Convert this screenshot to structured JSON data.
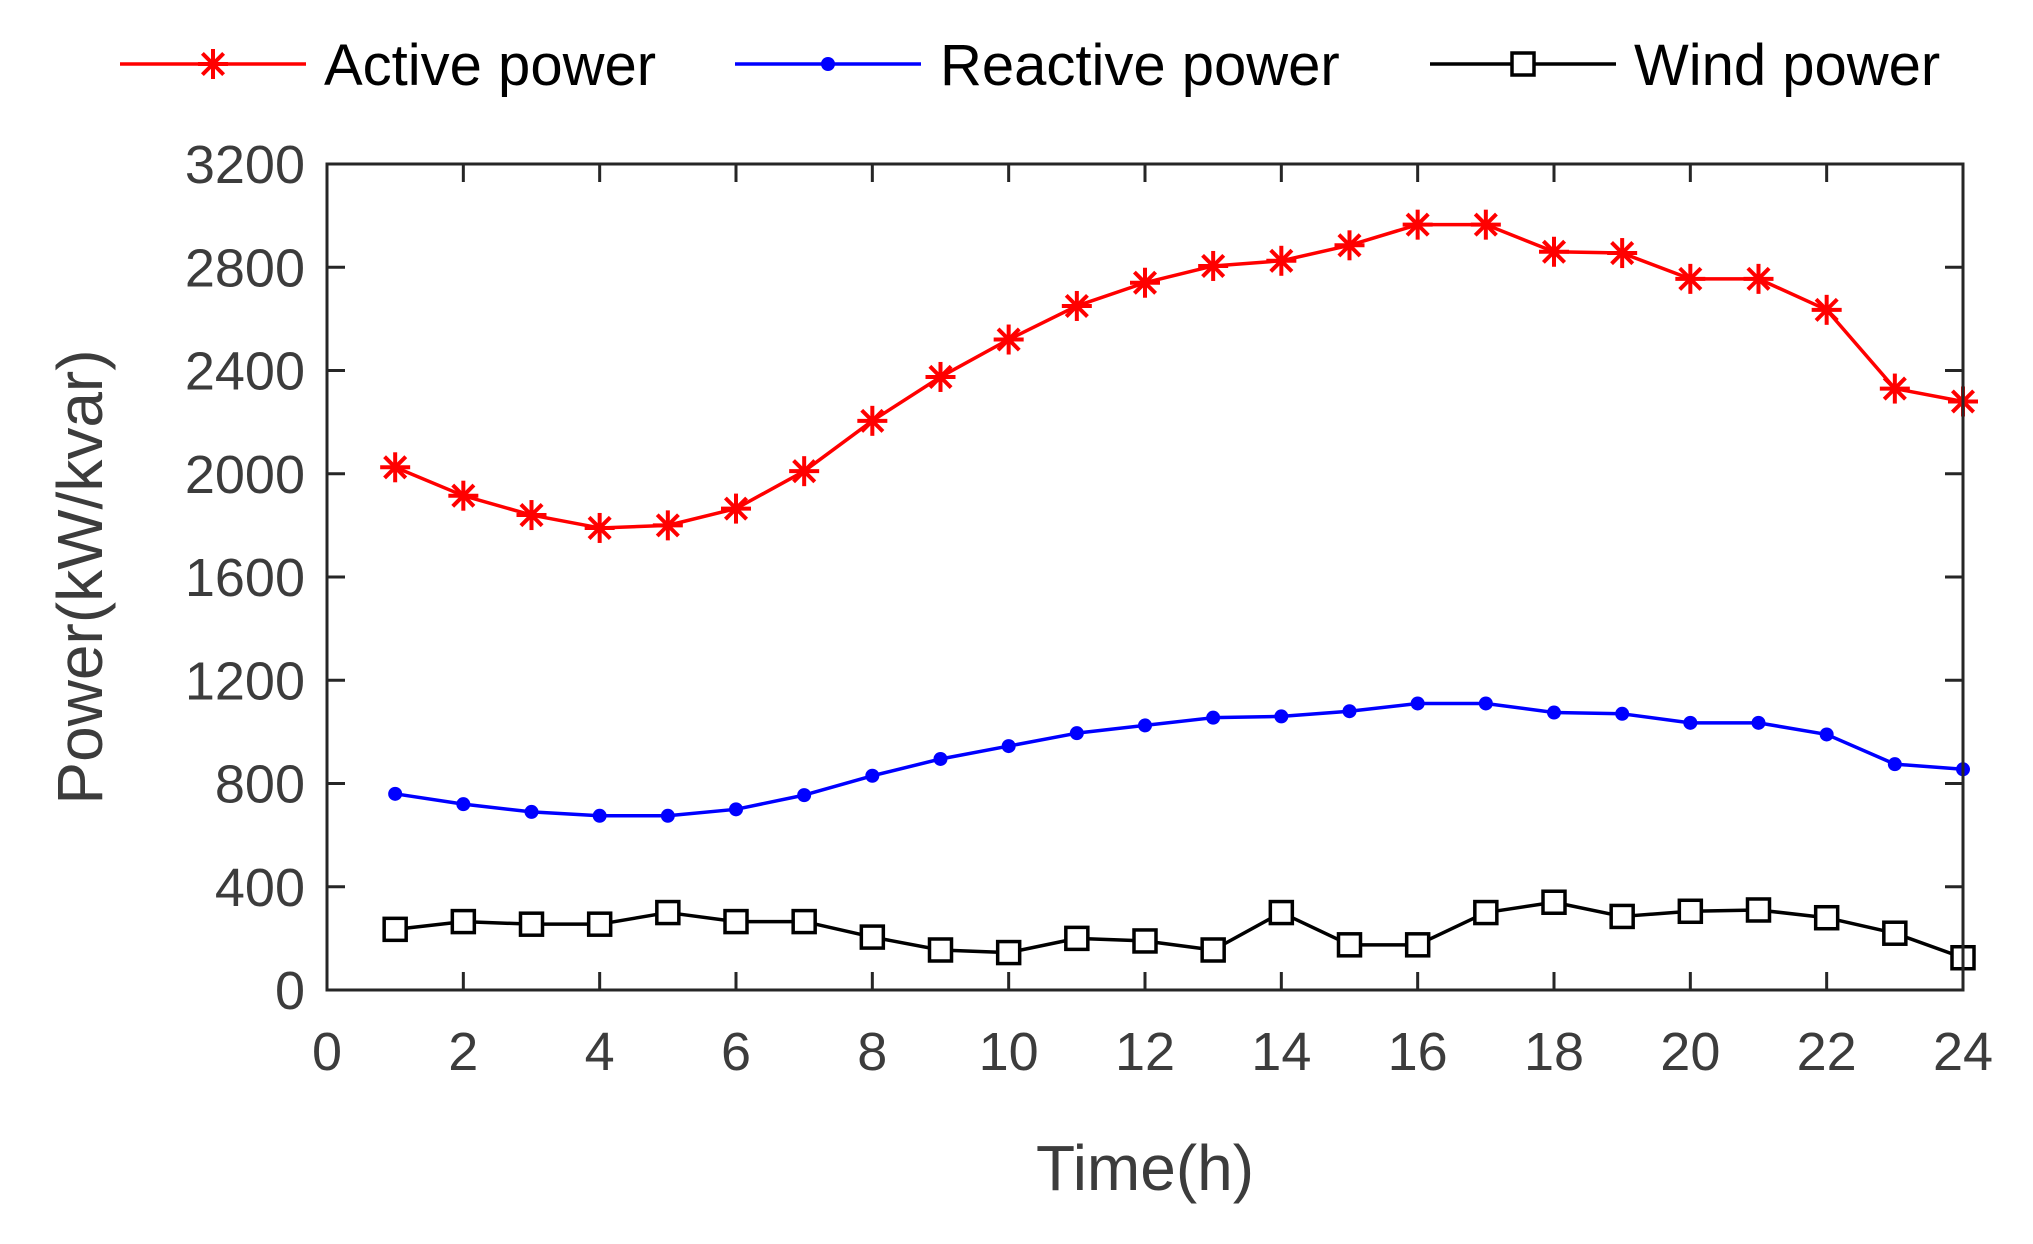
{
  "chart_data": {
    "type": "line",
    "title": "",
    "xlabel": "Time(h)",
    "ylabel": "Power(kW/kvar)",
    "xlim": [
      0,
      24
    ],
    "ylim": [
      0,
      3200
    ],
    "xticks": [
      0,
      2,
      4,
      6,
      8,
      10,
      12,
      14,
      16,
      18,
      20,
      22,
      24
    ],
    "yticks": [
      0,
      400,
      800,
      1200,
      1600,
      2000,
      2400,
      2800,
      3200
    ],
    "grid": false,
    "legend_position": "top",
    "x": [
      1,
      2,
      3,
      4,
      5,
      6,
      7,
      8,
      9,
      10,
      11,
      12,
      13,
      14,
      15,
      16,
      17,
      18,
      19,
      20,
      21,
      22,
      23,
      24
    ],
    "series": [
      {
        "name": "Active power",
        "color": "#ff0000",
        "marker": "asterisk",
        "values": [
          2025,
          1915,
          1840,
          1790,
          1800,
          1865,
          2010,
          2205,
          2375,
          2520,
          2650,
          2740,
          2805,
          2825,
          2885,
          2965,
          2965,
          2860,
          2855,
          2755,
          2755,
          2635,
          2330,
          2280
        ]
      },
      {
        "name": "Reactive power",
        "color": "#0000ff",
        "marker": "dot",
        "values": [
          760,
          720,
          690,
          675,
          675,
          700,
          755,
          830,
          895,
          945,
          995,
          1025,
          1055,
          1060,
          1080,
          1110,
          1110,
          1075,
          1070,
          1035,
          1035,
          990,
          875,
          855
        ]
      },
      {
        "name": "Wind power",
        "color": "#000000",
        "marker": "square",
        "values": [
          235,
          265,
          255,
          255,
          300,
          265,
          265,
          205,
          155,
          145,
          200,
          190,
          155,
          300,
          175,
          175,
          300,
          340,
          285,
          305,
          310,
          280,
          220,
          125
        ]
      }
    ]
  }
}
